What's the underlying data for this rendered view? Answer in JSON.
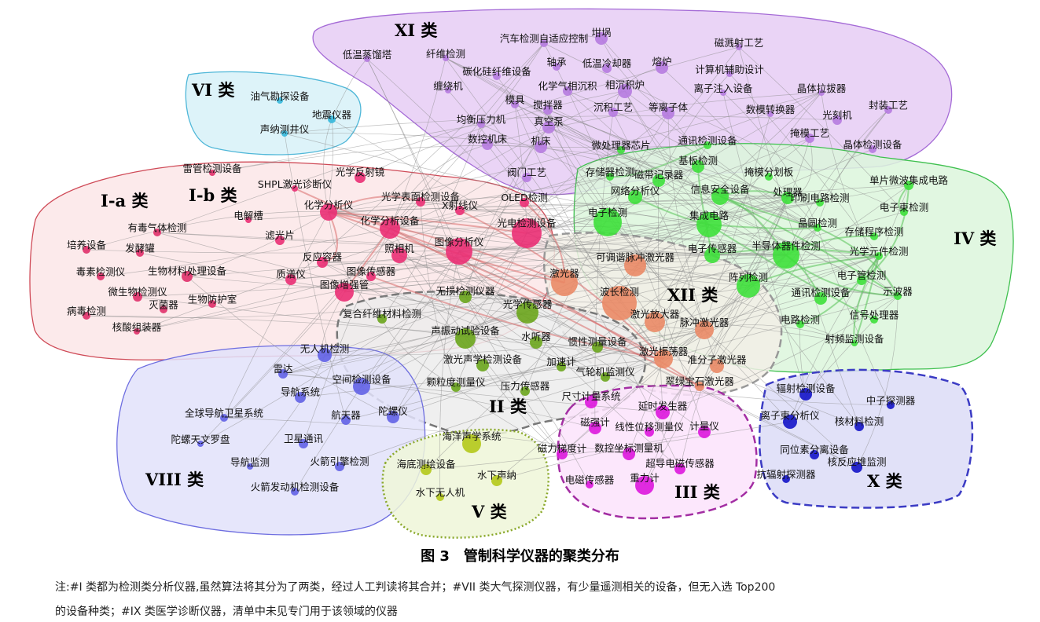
{
  "figure": {
    "caption": "图 3　管制科学仪器的聚类分布",
    "note_line1": "注:#I 类都为检测类分析仪器,虽然算法将其分为了两类，经过人工判读将其合并；#VII 类大气探测仪器，有少量遥测相关的设备，但无入选 Top200",
    "note_line2": "的设备种类；#IX 类医学诊断仪器，清单中未见专门用于该领域的仪器"
  },
  "clusters": [
    {
      "id": "XI",
      "label": "XI 类",
      "fill": "#e6ccf5",
      "stroke": "#a46ad6",
      "dash": false
    },
    {
      "id": "VI",
      "label": "VI 类",
      "fill": "#d7f1f8",
      "stroke": "#4fb7d8",
      "dash": false
    },
    {
      "id": "Ia",
      "label": "I-a 类",
      "fill": "#fbe6e8",
      "stroke": "#cf4a57",
      "dash": false
    },
    {
      "id": "Ib",
      "label": "I-b 类",
      "fill": "none",
      "stroke": "none",
      "dash": false
    },
    {
      "id": "IV",
      "label": "IV 类",
      "fill": "#dcf6dc",
      "stroke": "#3fc04f",
      "dash": false
    },
    {
      "id": "XII",
      "label": "XII 类",
      "fill": "#f2eee6",
      "stroke": "#999999",
      "dash": true
    },
    {
      "id": "II",
      "label": "II 类",
      "fill": "#ececec",
      "stroke": "#777777",
      "dash": true
    },
    {
      "id": "VIII",
      "label": "VIII 类",
      "fill": "#e2e2fa",
      "stroke": "#6d6de0",
      "dash": false
    },
    {
      "id": "V",
      "label": "V 类",
      "fill": "#eef6d8",
      "stroke": "#8aa82a",
      "dash": true
    },
    {
      "id": "III",
      "label": "III 类",
      "fill": "#fbe3fb",
      "stroke": "#a32ea3",
      "dash": true
    },
    {
      "id": "X",
      "label": "X 类",
      "fill": "#dcdcf7",
      "stroke": "#3b3bc4",
      "dash": true
    }
  ],
  "nodes": [
    {
      "label": "低温蒸馏塔",
      "c": "XI"
    },
    {
      "label": "纤维检测",
      "c": "XI"
    },
    {
      "label": "汽车检测自适应控制",
      "c": "XI"
    },
    {
      "label": "坩埚",
      "c": "XI"
    },
    {
      "label": "磁溅射工艺",
      "c": "XI"
    },
    {
      "label": "轴承",
      "c": "XI"
    },
    {
      "label": "低温冷却器",
      "c": "XI"
    },
    {
      "label": "熔炉",
      "c": "XI"
    },
    {
      "label": "碳化硅纤维设备",
      "c": "XI"
    },
    {
      "label": "计算机辅助设计",
      "c": "XI"
    },
    {
      "label": "缠绕机",
      "c": "XI"
    },
    {
      "label": "化学气相沉积",
      "c": "XI"
    },
    {
      "label": "相沉积炉",
      "c": "XI"
    },
    {
      "label": "离子注入设备",
      "c": "XI"
    },
    {
      "label": "晶体拉拔器",
      "c": "XI"
    },
    {
      "label": "模具",
      "c": "XI"
    },
    {
      "label": "搅拌器",
      "c": "XI"
    },
    {
      "label": "沉积工艺",
      "c": "XI"
    },
    {
      "label": "等离子体",
      "c": "XI"
    },
    {
      "label": "数模转换器",
      "c": "XI"
    },
    {
      "label": "封装工艺",
      "c": "XI"
    },
    {
      "label": "均衡压力机",
      "c": "XI"
    },
    {
      "label": "真空泵",
      "c": "XI"
    },
    {
      "label": "光刻机",
      "c": "XI"
    },
    {
      "label": "数控机床",
      "c": "XI"
    },
    {
      "label": "机床",
      "c": "XI"
    },
    {
      "label": "掩模工艺",
      "c": "XI"
    },
    {
      "label": "晶体检测设备",
      "c": "XI"
    },
    {
      "label": "阀门工艺",
      "c": "XI"
    },
    {
      "label": "油气勘探设备",
      "c": "VI"
    },
    {
      "label": "地震仪器",
      "c": "VI"
    },
    {
      "label": "声纳测井仪",
      "c": "VI"
    },
    {
      "label": "雷管检测设备",
      "c": "Ia"
    },
    {
      "label": "有毒气体检测",
      "c": "Ia"
    },
    {
      "label": "培养设备",
      "c": "Ia"
    },
    {
      "label": "发酵罐",
      "c": "Ia"
    },
    {
      "label": "毒素检测仪",
      "c": "Ia"
    },
    {
      "label": "生物材料处理设备",
      "c": "Ia"
    },
    {
      "label": "微生物检测仪",
      "c": "Ia"
    },
    {
      "label": "灭菌器",
      "c": "Ia"
    },
    {
      "label": "生物防护室",
      "c": "Ia"
    },
    {
      "label": "病毒检测",
      "c": "Ia"
    },
    {
      "label": "核酸组装器",
      "c": "Ia"
    },
    {
      "label": "SHPL激光诊断仪",
      "c": "Ib"
    },
    {
      "label": "光学反射镜",
      "c": "Ib"
    },
    {
      "label": "化学分析仪",
      "c": "Ib"
    },
    {
      "label": "电解槽",
      "c": "Ib"
    },
    {
      "label": "光学表面检测设备",
      "c": "Ib"
    },
    {
      "label": "X射线仪",
      "c": "Ib"
    },
    {
      "label": "OLED检测",
      "c": "Ib"
    },
    {
      "label": "化学分析设备",
      "c": "Ib"
    },
    {
      "label": "光电检测设备",
      "c": "Ib"
    },
    {
      "label": "滤光片",
      "c": "Ib"
    },
    {
      "label": "反应容器",
      "c": "Ib"
    },
    {
      "label": "照相机",
      "c": "Ib"
    },
    {
      "label": "图像分析仪",
      "c": "Ib"
    },
    {
      "label": "质谱仪",
      "c": "Ib"
    },
    {
      "label": "图像传感器",
      "c": "Ib"
    },
    {
      "label": "图像增强管",
      "c": "Ib"
    },
    {
      "label": "微处理器芯片",
      "c": "IV"
    },
    {
      "label": "通讯检测设备",
      "c": "IV"
    },
    {
      "label": "存储器检测",
      "c": "IV"
    },
    {
      "label": "磁带记录器",
      "c": "IV"
    },
    {
      "label": "基板检测",
      "c": "IV"
    },
    {
      "label": "掩模分划板",
      "c": "IV"
    },
    {
      "label": "单片微波集成电路",
      "c": "IV"
    },
    {
      "label": "网络分析仪",
      "c": "IV"
    },
    {
      "label": "信息安全设备",
      "c": "IV"
    },
    {
      "label": "处理器",
      "c": "IV"
    },
    {
      "label": "印刷电路检测",
      "c": "IV"
    },
    {
      "label": "电子束检测",
      "c": "IV"
    },
    {
      "label": "电子检测",
      "c": "IV"
    },
    {
      "label": "集成电路",
      "c": "IV"
    },
    {
      "label": "晶圆检测",
      "c": "IV"
    },
    {
      "label": "存储程序检测",
      "c": "IV"
    },
    {
      "label": "电子传感器",
      "c": "IV"
    },
    {
      "label": "半导体器件检测",
      "c": "IV"
    },
    {
      "label": "光学元件检测",
      "c": "IV"
    },
    {
      "label": "电子管检测",
      "c": "IV"
    },
    {
      "label": "阵列检测",
      "c": "IV"
    },
    {
      "label": "示波器",
      "c": "IV"
    },
    {
      "label": "通讯检测设备",
      "c": "IV"
    },
    {
      "label": "电路检测",
      "c": "IV"
    },
    {
      "label": "信号处理器",
      "c": "IV"
    },
    {
      "label": "射频监测设备",
      "c": "IV"
    },
    {
      "label": "可调谐脉冲激光器",
      "c": "XII"
    },
    {
      "label": "激光器",
      "c": "XII"
    },
    {
      "label": "波长检测",
      "c": "XII"
    },
    {
      "label": "激光放大器",
      "c": "XII"
    },
    {
      "label": "脉冲激光器",
      "c": "XII"
    },
    {
      "label": "激光振荡器",
      "c": "XII"
    },
    {
      "label": "准分子激光器",
      "c": "XII"
    },
    {
      "label": "翠绿宝石激光器",
      "c": "XII"
    },
    {
      "label": "无损检测仪器",
      "c": "II"
    },
    {
      "label": "光学传感器",
      "c": "II"
    },
    {
      "label": "复合纤维材料检测",
      "c": "II"
    },
    {
      "label": "声振动试验设备",
      "c": "II"
    },
    {
      "label": "水听器",
      "c": "II"
    },
    {
      "label": "惯性测量设备",
      "c": "II"
    },
    {
      "label": "激光声学检测设备",
      "c": "II"
    },
    {
      "label": "加速计",
      "c": "II"
    },
    {
      "label": "气轮机监测仪",
      "c": "II"
    },
    {
      "label": "颗粒度测量仪",
      "c": "II"
    },
    {
      "label": "压力传感器",
      "c": "II"
    },
    {
      "label": "无人机检测",
      "c": "VIII"
    },
    {
      "label": "雷达",
      "c": "VIII"
    },
    {
      "label": "空间检测设备",
      "c": "VIII"
    },
    {
      "label": "导航系统",
      "c": "VIII"
    },
    {
      "label": "全球导航卫星系统",
      "c": "VIII"
    },
    {
      "label": "航天器",
      "c": "VIII"
    },
    {
      "label": "陀螺仪",
      "c": "VIII"
    },
    {
      "label": "陀螺天文罗盘",
      "c": "VIII"
    },
    {
      "label": "卫星通讯",
      "c": "VIII"
    },
    {
      "label": "导航监测",
      "c": "VIII"
    },
    {
      "label": "火箭引擎检测",
      "c": "VIII"
    },
    {
      "label": "火箭发动机检测设备",
      "c": "VIII"
    },
    {
      "label": "海洋声学系统",
      "c": "V"
    },
    {
      "label": "海底测绘设备",
      "c": "V"
    },
    {
      "label": "水下声纳",
      "c": "V"
    },
    {
      "label": "水下无人机",
      "c": "V"
    },
    {
      "label": "尺寸计量系统",
      "c": "III"
    },
    {
      "label": "延时发生器",
      "c": "III"
    },
    {
      "label": "磁强计",
      "c": "III"
    },
    {
      "label": "线性位移测量仪",
      "c": "III"
    },
    {
      "label": "计量仪",
      "c": "III"
    },
    {
      "label": "磁力梯度计",
      "c": "III"
    },
    {
      "label": "数控坐标测量机",
      "c": "III"
    },
    {
      "label": "超导电磁传感器",
      "c": "III"
    },
    {
      "label": "电磁传感器",
      "c": "III"
    },
    {
      "label": "重力计",
      "c": "III"
    },
    {
      "label": "辐射检测设备",
      "c": "X"
    },
    {
      "label": "中子探测器",
      "c": "X"
    },
    {
      "label": "离子束分析仪",
      "c": "X"
    },
    {
      "label": "核材料检测",
      "c": "X"
    },
    {
      "label": "同位素分离设备",
      "c": "X"
    },
    {
      "label": "核反应堆监测",
      "c": "X"
    },
    {
      "label": "抗辐射探测器",
      "c": "X"
    }
  ],
  "colors": {
    "XI": "#b67be0",
    "VI": "#35b8dc",
    "Ia": "#e0306a",
    "Ib": "#ea2f74",
    "IV": "#3ee03b",
    "XII": "#ea8a66",
    "II": "#6aa51c",
    "VIII": "#6262e6",
    "V": "#b4c81a",
    "III": "#dd16dd",
    "X": "#1414c8",
    "edge": "#8a8a8a",
    "edge_red": "#d86a6a",
    "edge_green": "#55c255"
  }
}
